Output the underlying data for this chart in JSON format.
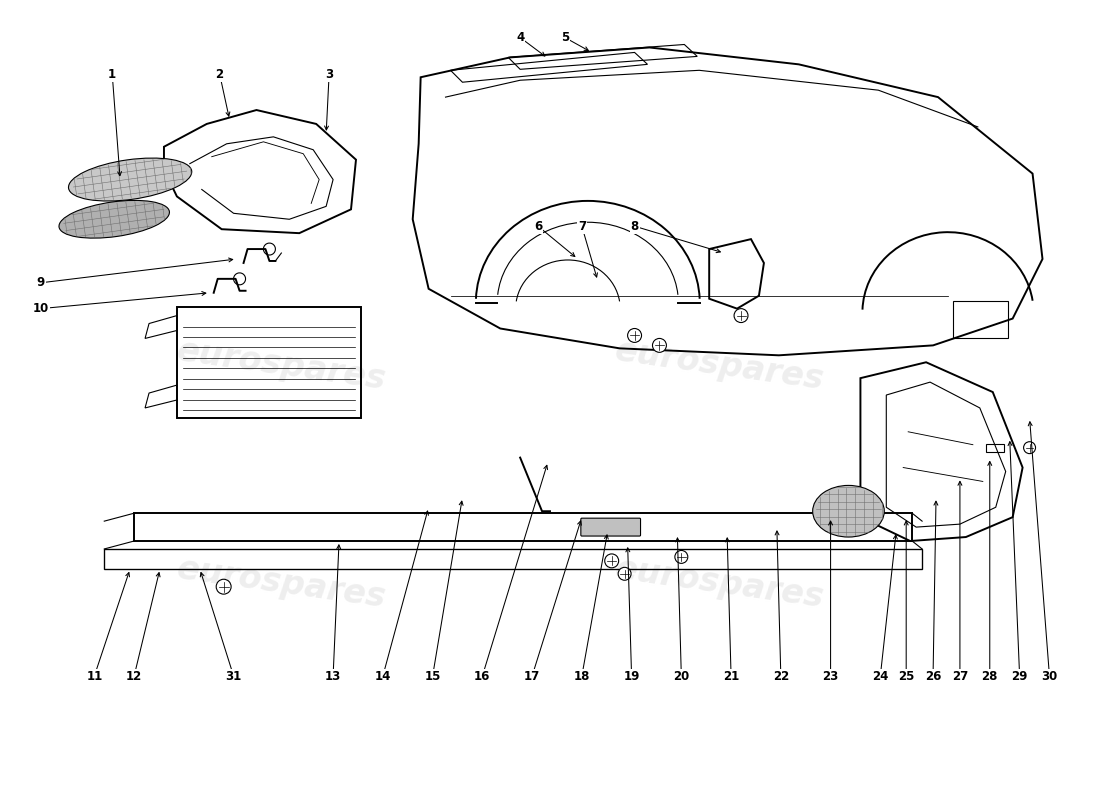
{
  "bg_color": "#ffffff",
  "line_color": "#000000",
  "lw_main": 1.4,
  "lw_thin": 0.8,
  "watermark": "eurospares",
  "watermark_color": "#e0e0e0",
  "annotations": [
    [
      1,
      1.1,
      7.28,
      1.18,
      6.22
    ],
    [
      2,
      2.18,
      7.28,
      2.28,
      6.82
    ],
    [
      3,
      3.28,
      7.28,
      3.25,
      6.68
    ],
    [
      4,
      5.2,
      7.65,
      5.48,
      7.44
    ],
    [
      5,
      5.65,
      7.65,
      5.92,
      7.5
    ],
    [
      6,
      5.38,
      5.75,
      5.78,
      5.42
    ],
    [
      7,
      5.82,
      5.75,
      5.98,
      5.2
    ],
    [
      8,
      6.35,
      5.75,
      7.25,
      5.48
    ],
    [
      9,
      0.38,
      5.18,
      2.35,
      5.42
    ],
    [
      10,
      0.38,
      4.92,
      2.08,
      5.08
    ],
    [
      11,
      0.92,
      1.22,
      1.28,
      2.3
    ],
    [
      12,
      1.32,
      1.22,
      1.58,
      2.3
    ],
    [
      31,
      2.32,
      1.22,
      1.98,
      2.3
    ],
    [
      13,
      3.32,
      1.22,
      3.38,
      2.58
    ],
    [
      14,
      3.82,
      1.22,
      4.28,
      2.92
    ],
    [
      15,
      4.32,
      1.22,
      4.62,
      3.02
    ],
    [
      16,
      4.82,
      1.22,
      5.48,
      3.38
    ],
    [
      17,
      5.32,
      1.22,
      5.82,
      2.82
    ],
    [
      18,
      5.82,
      1.22,
      6.08,
      2.68
    ],
    [
      19,
      6.32,
      1.22,
      6.28,
      2.55
    ],
    [
      20,
      6.82,
      1.22,
      6.78,
      2.65
    ],
    [
      21,
      7.32,
      1.22,
      7.28,
      2.65
    ],
    [
      22,
      7.82,
      1.22,
      7.78,
      2.72
    ],
    [
      23,
      8.32,
      1.22,
      8.32,
      2.82
    ],
    [
      24,
      8.82,
      1.22,
      8.98,
      2.68
    ],
    [
      25,
      9.08,
      1.22,
      9.08,
      2.82
    ],
    [
      26,
      9.35,
      1.22,
      9.38,
      3.02
    ],
    [
      27,
      9.62,
      1.22,
      9.62,
      3.22
    ],
    [
      28,
      9.92,
      1.22,
      9.92,
      3.42
    ],
    [
      29,
      10.22,
      1.22,
      10.12,
      3.62
    ],
    [
      30,
      10.52,
      1.22,
      10.32,
      3.82
    ]
  ]
}
